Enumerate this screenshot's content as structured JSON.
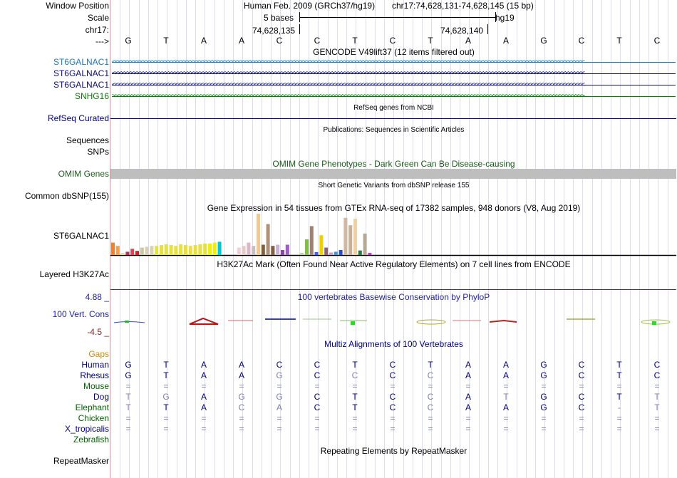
{
  "labels": {
    "window_position": "Window Position",
    "scale": "Scale",
    "chrom": "chr17:",
    "strand": "--->",
    "gene1": "ST6GALNAC1",
    "gene2": "ST6GALNAC1",
    "gene3": "ST6GALNAC1",
    "gene4": "SNHG16",
    "refseq": "RefSeq Curated",
    "sequences": "Sequences",
    "snps": "SNPs",
    "omim": "OMIM Genes",
    "dbsnp": "Common dbSNP(155)",
    "gtex": "ST6GALNAC1",
    "h3k27ac": "Layered H3K27Ac",
    "phylop_max": "4.88 _",
    "phylop_name": "100 Vert. Cons",
    "phylop_min": "-4.5 _",
    "gaps": "Gaps",
    "repeatmasker": "RepeatMasker"
  },
  "header": {
    "assembly": "Human Feb. 2009 (GRCh37/hg19)",
    "position": "chr17:74,628,131-74,628,145 (15 bp)",
    "scale_text": "5 bases",
    "scale_db": "hg19",
    "coord_left": "74,628,135",
    "coord_right": "74,628,140"
  },
  "bases": [
    "G",
    "T",
    "A",
    "A",
    "C",
    "C",
    "T",
    "C",
    "T",
    "A",
    "A",
    "G",
    "C",
    "T",
    "C"
  ],
  "track_titles": {
    "gencode": "GENCODE V49lift37 (12 items filtered out)",
    "refseq": "RefSeq genes from NCBI",
    "publications": "Publications: Sequences in Scientific Articles",
    "omim": "OMIM Gene Phenotypes - Dark Green Can Be Disease-causing",
    "dbsnp": "Short Genetic Variants from dbSNP release 155",
    "gtex": "Gene Expression in 54 tissues from GTEx RNA-seq of 17382 samples, 948 donors (V8, Aug 2019)",
    "h3k27ac": "H3K27Ac Mark (Often Found Near Active Regulatory Elements) on 7 cell lines from ENCODE",
    "phylop": "100 vertebrates Basewise Conservation by PhyloP",
    "multiz": "Multiz Alignments of 100 Vertebrates",
    "repeatmasker": "Repeating Elements by RepeatMasker"
  },
  "colors": {
    "gene_blue": "#1f77b4",
    "gene_navy": "#0c0c78",
    "gene_green": "#0d7a0d",
    "label_navy": "#000080",
    "omim_green": "#1a5c1a",
    "omim_bar": "#bebebe",
    "phylop_blue": "#2020a0",
    "phylop_red": "#8b1a1a",
    "gaps_orange": "#d08a00",
    "species_navy": "#000080",
    "species_green": "#006400",
    "h3k27ac_line": "#5c2a5c"
  },
  "alignment": {
    "species": [
      {
        "name": "Human",
        "color": "navy",
        "row": [
          "G",
          "T",
          "A",
          "A",
          "C",
          "C",
          "T",
          "C",
          "T",
          "A",
          "A",
          "G",
          "C",
          "T",
          "C"
        ],
        "shade": [
          0,
          0,
          0,
          0,
          0,
          0,
          0,
          0,
          0,
          0,
          0,
          0,
          0,
          0,
          0
        ]
      },
      {
        "name": "Rhesus",
        "color": "navy",
        "row": [
          "G",
          "T",
          "A",
          "A",
          "G",
          "C",
          "C",
          "C",
          "C",
          "A",
          "A",
          "G",
          "C",
          "T",
          "C"
        ],
        "shade": [
          0,
          0,
          0,
          0,
          1,
          0,
          1,
          0,
          1,
          0,
          0,
          0,
          0,
          0,
          0
        ]
      },
      {
        "name": "Mouse",
        "color": "green",
        "row": [
          "=",
          "=",
          "=",
          "=",
          "=",
          "=",
          "=",
          "=",
          "=",
          "=",
          "=",
          "=",
          "=",
          "=",
          "="
        ],
        "shade": [
          1,
          1,
          1,
          1,
          1,
          1,
          1,
          1,
          1,
          1,
          1,
          1,
          1,
          1,
          1
        ]
      },
      {
        "name": "Dog",
        "color": "navy",
        "row": [
          "T",
          "G",
          "A",
          "G",
          "G",
          "C",
          "T",
          "C",
          "C",
          "A",
          "T",
          "G",
          "C",
          "T",
          "T"
        ],
        "shade": [
          1,
          1,
          0,
          1,
          1,
          0,
          0,
          0,
          1,
          0,
          1,
          0,
          0,
          0,
          1
        ]
      },
      {
        "name": "Elephant",
        "color": "green",
        "row": [
          "T",
          "T",
          "A",
          "C",
          "A",
          "C",
          "T",
          "C",
          "C",
          "A",
          "A",
          "G",
          "C",
          "-",
          "T"
        ],
        "shade": [
          1,
          0,
          0,
          1,
          1,
          0,
          0,
          0,
          1,
          0,
          0,
          0,
          0,
          1,
          1
        ]
      },
      {
        "name": "Chicken",
        "color": "green",
        "row": [
          "=",
          "=",
          "=",
          "=",
          "=",
          "=",
          "=",
          "=",
          "=",
          "=",
          "=",
          "=",
          "=",
          "=",
          "="
        ],
        "shade": [
          1,
          1,
          1,
          1,
          1,
          1,
          1,
          1,
          1,
          1,
          1,
          1,
          1,
          1,
          1
        ]
      },
      {
        "name": "X_tropicalis",
        "color": "navy",
        "row": [
          "=",
          "=",
          "=",
          "=",
          "=",
          "=",
          "=",
          "=",
          "=",
          "=",
          "=",
          "=",
          "=",
          "=",
          "="
        ],
        "shade": [
          1,
          1,
          1,
          1,
          1,
          1,
          1,
          1,
          1,
          1,
          1,
          1,
          1,
          1,
          1
        ]
      },
      {
        "name": "Zebrafish",
        "color": "green",
        "row": [],
        "shade": []
      }
    ]
  },
  "gtex_bars": [
    {
      "value": 0.3,
      "color": "#f08030"
    },
    {
      "value": 0.22,
      "color": "#f0a050"
    },
    {
      "value": 0.05,
      "color": "#e0e0a0"
    },
    {
      "value": 0.08,
      "color": "#b03060"
    },
    {
      "value": 0.15,
      "color": "#e04050"
    },
    {
      "value": 0.1,
      "color": "#d02020"
    },
    {
      "value": 0.18,
      "color": "#c8c8a0"
    },
    {
      "value": 0.2,
      "color": "#d8d0b0"
    },
    {
      "value": 0.22,
      "color": "#d8d0b8"
    },
    {
      "value": 0.22,
      "color": "#e8e040"
    },
    {
      "value": 0.24,
      "color": "#e8e040"
    },
    {
      "value": 0.26,
      "color": "#e8e040"
    },
    {
      "value": 0.24,
      "color": "#e8e040"
    },
    {
      "value": 0.22,
      "color": "#e8e040"
    },
    {
      "value": 0.26,
      "color": "#e8e040"
    },
    {
      "value": 0.24,
      "color": "#e8e040"
    },
    {
      "value": 0.22,
      "color": "#e8e040"
    },
    {
      "value": 0.24,
      "color": "#e8e040"
    },
    {
      "value": 0.26,
      "color": "#e8e040"
    },
    {
      "value": 0.28,
      "color": "#e8e040"
    },
    {
      "value": 0.28,
      "color": "#f0f000"
    },
    {
      "value": 0.3,
      "color": "#f0f000"
    },
    {
      "value": 0.32,
      "color": "#00c8d0"
    },
    {
      "value": 0.0,
      "color": "#ffffff"
    },
    {
      "value": 0.0,
      "color": "#ffffff"
    },
    {
      "value": 0.0,
      "color": "#ffffff"
    },
    {
      "value": 0.18,
      "color": "#f0d0d8"
    },
    {
      "value": 0.22,
      "color": "#e8c8c8"
    },
    {
      "value": 0.3,
      "color": "#d8b8c8"
    },
    {
      "value": 0.22,
      "color": "#c8c0c0"
    },
    {
      "value": 1.0,
      "color": "#f0c890"
    },
    {
      "value": 0.25,
      "color": "#806040"
    },
    {
      "value": 0.75,
      "color": "#b09078"
    },
    {
      "value": 0.22,
      "color": "#806040"
    },
    {
      "value": 0.25,
      "color": "#c8b0d0"
    },
    {
      "value": 0.12,
      "color": "#9040b0"
    },
    {
      "value": 0.25,
      "color": "#a05cc0"
    },
    {
      "value": 0.0,
      "color": "#ffffff"
    },
    {
      "value": 0.02,
      "color": "#c0c0c0"
    },
    {
      "value": 0.05,
      "color": "#b0d0a0"
    },
    {
      "value": 0.38,
      "color": "#80c040"
    },
    {
      "value": 0.7,
      "color": "#a08070"
    },
    {
      "value": 0.07,
      "color": "#4060e0"
    },
    {
      "value": 0.48,
      "color": "#f0d000"
    },
    {
      "value": 0.18,
      "color": "#906070"
    },
    {
      "value": 0.06,
      "color": "#c0a0c0"
    },
    {
      "value": 0.08,
      "color": "#4090e0"
    },
    {
      "value": 0.12,
      "color": "#2050d0"
    },
    {
      "value": 0.9,
      "color": "#d0b8a0"
    },
    {
      "value": 0.72,
      "color": "#c8b098"
    },
    {
      "value": 0.88,
      "color": "#f0d0a0"
    },
    {
      "value": 0.11,
      "color": "#208040"
    },
    {
      "value": 0.52,
      "color": "#b8a898"
    },
    {
      "value": 0.05,
      "color": "#c030c0"
    }
  ]
}
